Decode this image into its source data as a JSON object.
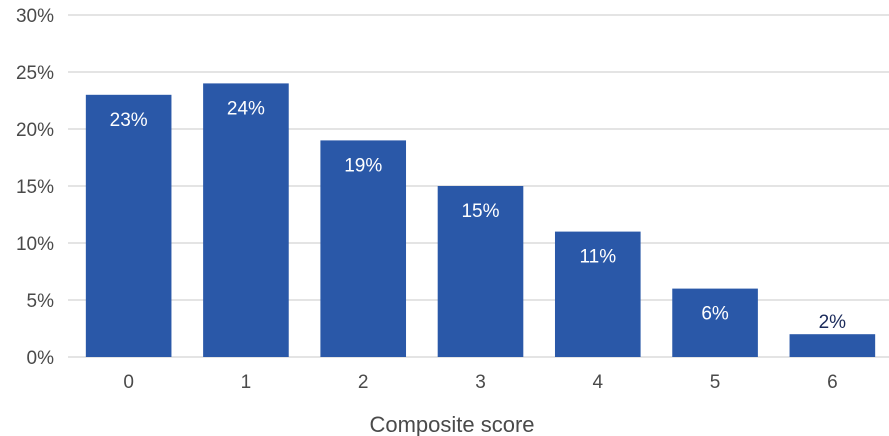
{
  "chart_data": {
    "type": "bar",
    "title": "",
    "xlabel": "Composite score",
    "ylabel": "",
    "categories": [
      "0",
      "1",
      "2",
      "3",
      "4",
      "5",
      "6"
    ],
    "values": [
      23,
      24,
      19,
      15,
      11,
      6,
      2
    ],
    "data_labels": [
      "23%",
      "24%",
      "19%",
      "15%",
      "11%",
      "6%",
      "2%"
    ],
    "ylim": [
      0,
      30
    ],
    "yticks": [
      0,
      5,
      10,
      15,
      20,
      25,
      30
    ],
    "ytick_labels": [
      "0%",
      "5%",
      "10%",
      "15%",
      "20%",
      "25%",
      "30%"
    ],
    "grid": true,
    "legend": "none",
    "colors": {
      "bar": "#2a58a8",
      "grid": "#c8c8c8",
      "label_inside": "#ffffff",
      "label_outside": "#1a2a5a",
      "text": "#4a4a4a"
    }
  }
}
